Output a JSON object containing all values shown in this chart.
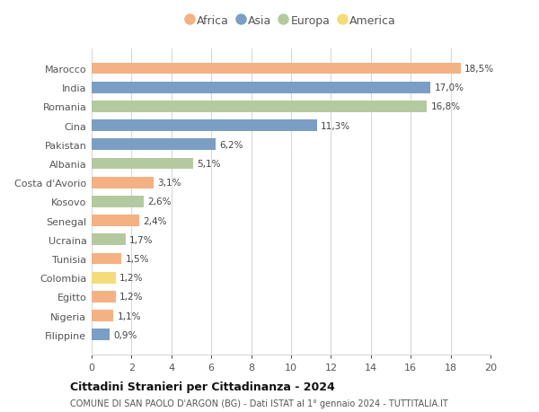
{
  "countries": [
    "Marocco",
    "India",
    "Romania",
    "Cina",
    "Pakistan",
    "Albania",
    "Costa d'Avorio",
    "Kosovo",
    "Senegal",
    "Ucraina",
    "Tunisia",
    "Colombia",
    "Egitto",
    "Nigeria",
    "Filippine"
  ],
  "values": [
    18.5,
    17.0,
    16.8,
    11.3,
    6.2,
    5.1,
    3.1,
    2.6,
    2.4,
    1.7,
    1.5,
    1.2,
    1.2,
    1.1,
    0.9
  ],
  "labels": [
    "18,5%",
    "17,0%",
    "16,8%",
    "11,3%",
    "6,2%",
    "5,1%",
    "3,1%",
    "2,6%",
    "2,4%",
    "1,7%",
    "1,5%",
    "1,2%",
    "1,2%",
    "1,1%",
    "0,9%"
  ],
  "continents": [
    "Africa",
    "Asia",
    "Europa",
    "Asia",
    "Asia",
    "Europa",
    "Africa",
    "Europa",
    "Africa",
    "Europa",
    "Africa",
    "America",
    "Africa",
    "Africa",
    "Asia"
  ],
  "colors": {
    "Africa": "#F4B183",
    "Asia": "#7B9EC4",
    "Europa": "#B5C9A0",
    "America": "#F5DC7A"
  },
  "legend_order": [
    "Africa",
    "Asia",
    "Europa",
    "America"
  ],
  "xlim": [
    0,
    20
  ],
  "xticks": [
    0,
    2,
    4,
    6,
    8,
    10,
    12,
    14,
    16,
    18,
    20
  ],
  "title": "Cittadini Stranieri per Cittadinanza - 2024",
  "subtitle": "COMUNE DI SAN PAOLO D'ARGON (BG) - Dati ISTAT al 1° gennaio 2024 - TUTTITALIA.IT",
  "bg_color": "#ffffff",
  "grid_color": "#d8d8d8"
}
